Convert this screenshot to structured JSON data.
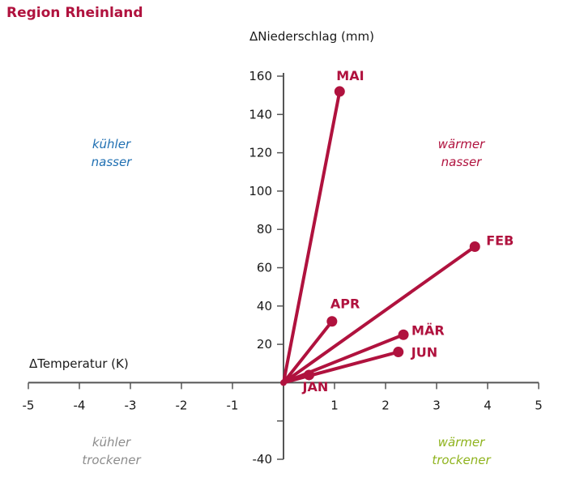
{
  "chart_data": {
    "type": "scatter",
    "title": "Region Rheinland",
    "xlabel": "ΔTemperatur (K)",
    "ylabel": "ΔNiederschlag (mm)",
    "xlim": [
      -5,
      5
    ],
    "ylim": [
      -40,
      160
    ],
    "x_ticks": [
      "-5",
      "-4",
      "-3",
      "-2",
      "-1",
      "1",
      "2",
      "3",
      "4",
      "5"
    ],
    "y_ticks": [
      "-40",
      "20",
      "40",
      "60",
      "80",
      "100",
      "120",
      "140",
      "160"
    ],
    "grid": false,
    "points": [
      {
        "label": "JAN",
        "x": 0.5,
        "y": 4
      },
      {
        "label": "FEB",
        "x": 3.75,
        "y": 71
      },
      {
        "label": "MÄR",
        "x": 2.35,
        "y": 25
      },
      {
        "label": "APR",
        "x": 0.95,
        "y": 32
      },
      {
        "label": "MAI",
        "x": 1.1,
        "y": 152
      },
      {
        "label": "JUN",
        "x": 2.25,
        "y": 16
      }
    ],
    "quadrants": {
      "top_left": [
        "kühler",
        "nasser"
      ],
      "top_right": [
        "wärmer",
        "nasser"
      ],
      "bottom_left": [
        "kühler",
        "trockener"
      ],
      "bottom_right": [
        "wärmer",
        "trockener"
      ]
    },
    "colors": {
      "series": "#b0123e",
      "axis": "#555555",
      "cool_wet": "#1f6fb2",
      "warm_wet": "#b0123e",
      "cool_dry": "#8c8c8c",
      "warm_dry": "#8fb31d"
    }
  }
}
